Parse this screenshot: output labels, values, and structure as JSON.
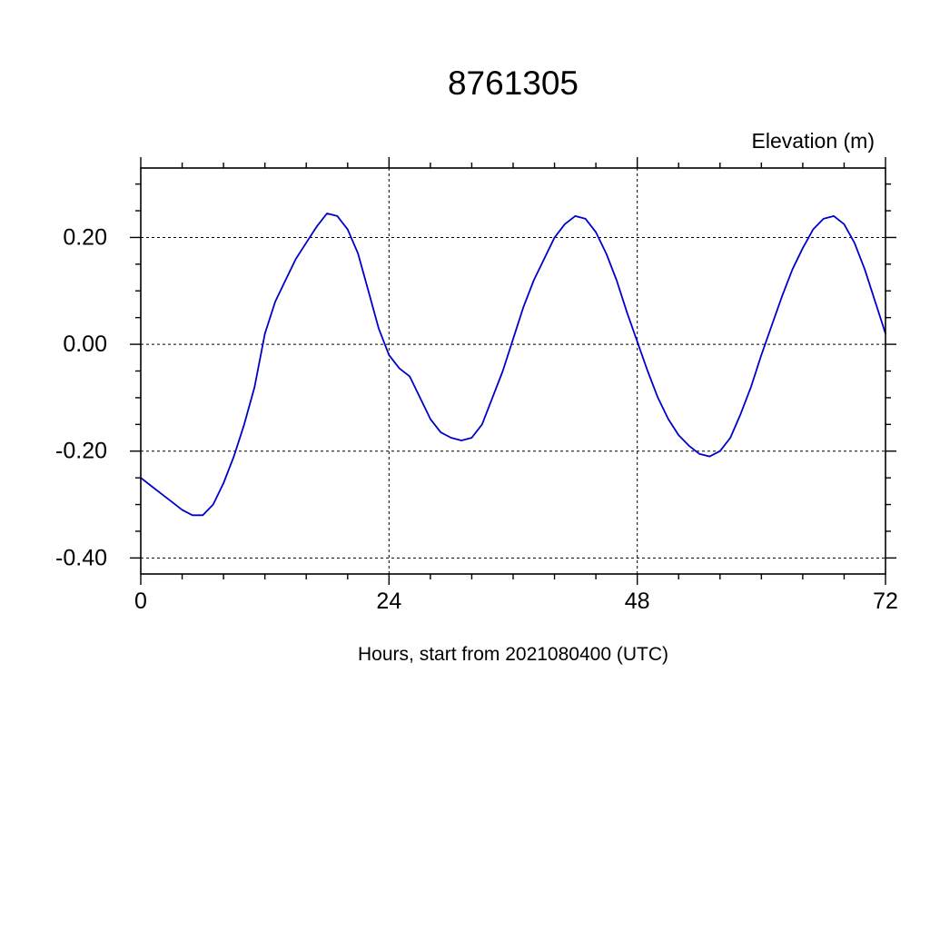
{
  "page": {
    "background_color": "#ffffff"
  },
  "chart": {
    "title": "8761305",
    "y_axis_label": "Elevation (m)",
    "x_axis_label": "Hours, start from 2021080400 (UTC)"
  },
  "chart_data": {
    "type": "line",
    "title": "8761305",
    "xlabel": "Hours, start from 2021080400 (UTC)",
    "ylabel": "Elevation (m)",
    "series": [
      {
        "name": "elevation",
        "x": [
          0,
          1,
          2,
          3,
          4,
          5,
          6,
          7,
          8,
          9,
          10,
          11,
          12,
          13,
          14,
          15,
          16,
          17,
          18,
          19,
          20,
          21,
          22,
          23,
          24,
          25,
          26,
          27,
          28,
          29,
          30,
          31,
          32,
          33,
          34,
          35,
          36,
          37,
          38,
          39,
          40,
          41,
          42,
          43,
          44,
          45,
          46,
          47,
          48,
          49,
          50,
          51,
          52,
          53,
          54,
          55,
          56,
          57,
          58,
          59,
          60,
          61,
          62,
          63,
          64,
          65,
          66,
          67,
          68,
          69,
          70,
          71,
          72
        ],
        "values": [
          -0.25,
          -0.265,
          -0.28,
          -0.295,
          -0.31,
          -0.32,
          -0.32,
          -0.3,
          -0.26,
          -0.21,
          -0.15,
          -0.08,
          0.02,
          0.08,
          0.12,
          0.16,
          0.19,
          0.22,
          0.245,
          0.24,
          0.215,
          0.17,
          0.1,
          0.03,
          -0.02,
          -0.045,
          -0.06,
          -0.1,
          -0.14,
          -0.165,
          -0.175,
          -0.18,
          -0.175,
          -0.15,
          -0.1,
          -0.05,
          0.01,
          0.07,
          0.12,
          0.16,
          0.2,
          0.225,
          0.24,
          0.235,
          0.21,
          0.17,
          0.12,
          0.06,
          0.005,
          -0.05,
          -0.1,
          -0.14,
          -0.17,
          -0.19,
          -0.205,
          -0.21,
          -0.2,
          -0.175,
          -0.13,
          -0.08,
          -0.02,
          0.035,
          0.09,
          0.14,
          0.18,
          0.215,
          0.235,
          0.24,
          0.225,
          0.19,
          0.14,
          0.08,
          0.02
        ]
      }
    ],
    "xlim": [
      0,
      72
    ],
    "ylim": [
      -0.43,
      0.33
    ],
    "xticks": [
      0,
      24,
      48,
      72
    ],
    "yticks": [
      -0.4,
      -0.2,
      0.0,
      0.2
    ],
    "x_minor_step": 4,
    "y_minor_step": 0.05,
    "grid": {
      "style": "dashed",
      "x_gridlines": [
        24,
        48
      ],
      "y_gridlines": [
        -0.4,
        -0.2,
        0.0,
        0.2
      ]
    },
    "line_color": "#0000cc",
    "axis_color": "#000000",
    "legend_position": "none"
  }
}
